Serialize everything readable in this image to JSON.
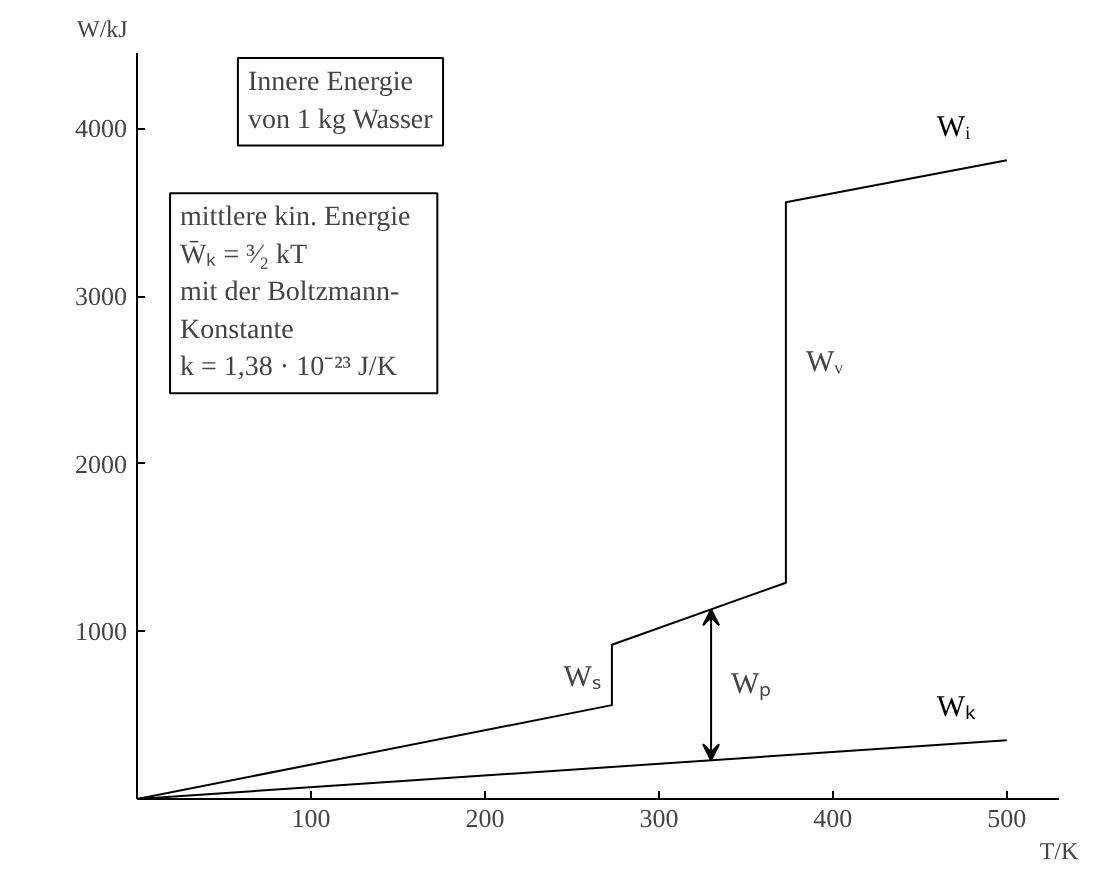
{
  "chart_data": {
    "type": "line",
    "xlabel": "T/K",
    "ylabel": "W/kJ",
    "series": [
      {
        "name": "Wᵢ",
        "color": "#000000",
        "x": [
          0,
          273,
          273,
          373,
          373,
          500
        ],
        "values": [
          0,
          560,
          920,
          1290,
          3560,
          3810
        ]
      },
      {
        "name": "Wₖ",
        "color": "#000000",
        "x": [
          0,
          500
        ],
        "values": [
          0,
          350
        ]
      }
    ],
    "annotations": [
      "Innere Energie\nvon 1 kg Wasser",
      "mittlere kin. Energie\n      W̄ₖ = ³⁄₂ kT\nmit   der   Boltzmann-\nKonstante\n   k = 1,38 · 10⁻²³ J/K",
      {
        "text": "Wᵥ",
        "x": 373,
        "y": 2600
      },
      {
        "text": "Wₛ",
        "x": 273,
        "y": 720
      },
      "Wₚ"
    ],
    "xlim": [
      0,
      530
    ],
    "ylim": [
      0,
      4450
    ],
    "xticks": [
      100,
      200,
      300,
      400,
      500
    ],
    "yticks": [
      1000,
      2000,
      3000,
      4000
    ],
    "grid": false,
    "legend": false,
    "marker": "none",
    "line_style": "solid"
  }
}
